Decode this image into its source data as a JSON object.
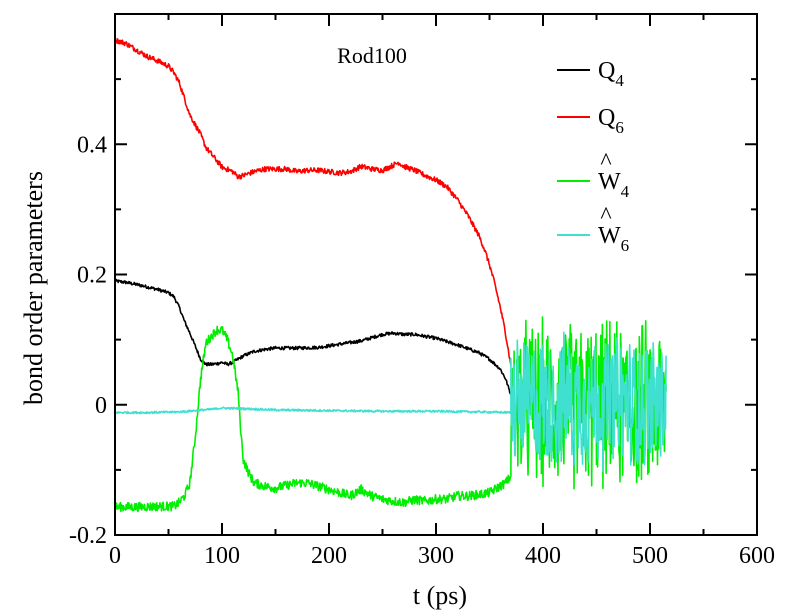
{
  "chart_data": {
    "type": "line",
    "title": "Rod100",
    "xlabel": "t (ps)",
    "ylabel": "bond order parameters",
    "xlim": [
      0,
      600
    ],
    "ylim": [
      -0.2,
      0.6
    ],
    "x_ticks": [
      "0",
      "100",
      "200",
      "300",
      "400",
      "500",
      "600"
    ],
    "y_ticks": [
      "-0.2",
      "0",
      "0.2",
      "0.4"
    ],
    "grid": false,
    "legend_position": "top-right",
    "series": [
      {
        "name": "Q4",
        "label_main": "Q",
        "label_sub": "4",
        "label_hat": "",
        "color": "#000000",
        "x": [
          0,
          10,
          25,
          40,
          50,
          55,
          60,
          65,
          70,
          75,
          80,
          85,
          90,
          95,
          100,
          105,
          110,
          115,
          120,
          130,
          140,
          150,
          170,
          190,
          210,
          230,
          240,
          250,
          260,
          270,
          280,
          300,
          320,
          340,
          350,
          360,
          365,
          370
        ],
        "y": [
          0.19,
          0.188,
          0.183,
          0.177,
          0.172,
          0.166,
          0.15,
          0.128,
          0.11,
          0.09,
          0.07,
          0.062,
          0.062,
          0.063,
          0.065,
          0.062,
          0.065,
          0.07,
          0.075,
          0.082,
          0.085,
          0.087,
          0.087,
          0.088,
          0.093,
          0.098,
          0.103,
          0.108,
          0.11,
          0.108,
          0.108,
          0.102,
          0.092,
          0.08,
          0.07,
          0.055,
          0.04,
          0.015
        ]
      },
      {
        "name": "Q6",
        "label_main": "Q",
        "label_sub": "6",
        "label_hat": "",
        "color": "#ff0000",
        "x": [
          0,
          10,
          20,
          30,
          40,
          50,
          55,
          60,
          65,
          70,
          75,
          80,
          85,
          90,
          95,
          100,
          110,
          115,
          120,
          130,
          140,
          150,
          160,
          170,
          180,
          190,
          200,
          210,
          220,
          230,
          240,
          250,
          260,
          265,
          270,
          280,
          290,
          300,
          310,
          320,
          330,
          340,
          345,
          350,
          355,
          360,
          365,
          370
        ],
        "y": [
          0.56,
          0.555,
          0.545,
          0.535,
          0.528,
          0.52,
          0.51,
          0.495,
          0.47,
          0.445,
          0.43,
          0.415,
          0.395,
          0.385,
          0.375,
          0.365,
          0.358,
          0.35,
          0.352,
          0.358,
          0.362,
          0.362,
          0.362,
          0.358,
          0.36,
          0.36,
          0.358,
          0.356,
          0.358,
          0.366,
          0.362,
          0.36,
          0.368,
          0.372,
          0.366,
          0.36,
          0.352,
          0.345,
          0.335,
          0.315,
          0.29,
          0.26,
          0.24,
          0.215,
          0.185,
          0.15,
          0.11,
          0.06
        ]
      },
      {
        "name": "W4",
        "label_main": "W",
        "label_sub": "4",
        "label_hat": "^",
        "color": "#00ee00",
        "x": [
          0,
          20,
          40,
          55,
          60,
          65,
          70,
          75,
          80,
          85,
          90,
          95,
          100,
          105,
          110,
          115,
          118,
          120,
          125,
          130,
          140,
          150,
          160,
          170,
          180,
          190,
          200,
          210,
          220,
          230,
          240,
          250,
          260,
          270,
          280,
          290,
          300,
          310,
          320,
          330,
          340,
          350,
          360,
          365,
          370
        ],
        "y": [
          -0.157,
          -0.157,
          -0.156,
          -0.156,
          -0.15,
          -0.14,
          -0.12,
          -0.05,
          0.04,
          0.095,
          0.105,
          0.115,
          0.115,
          0.1,
          0.075,
          0.02,
          -0.05,
          -0.085,
          -0.105,
          -0.12,
          -0.125,
          -0.128,
          -0.124,
          -0.12,
          -0.12,
          -0.125,
          -0.13,
          -0.135,
          -0.14,
          -0.13,
          -0.14,
          -0.145,
          -0.148,
          -0.15,
          -0.146,
          -0.148,
          -0.145,
          -0.145,
          -0.14,
          -0.14,
          -0.138,
          -0.135,
          -0.125,
          -0.12,
          -0.11
        ]
      },
      {
        "name": "W6",
        "label_main": "W",
        "label_sub": "6",
        "label_hat": "^",
        "color": "#40e0d0",
        "x": [
          0,
          30,
          60,
          75,
          90,
          100,
          120,
          150,
          200,
          250,
          300,
          340,
          370
        ],
        "y": [
          -0.012,
          -0.012,
          -0.011,
          -0.009,
          -0.007,
          -0.005,
          -0.006,
          -0.008,
          -0.009,
          -0.01,
          -0.01,
          -0.011,
          -0.012
        ]
      }
    ],
    "noisy_region": {
      "x_range": [
        370,
        515
      ],
      "W4_amplitude_range": [
        -0.145,
        0.145
      ],
      "W6_amplitude_range": [
        -0.11,
        0.12
      ]
    }
  }
}
